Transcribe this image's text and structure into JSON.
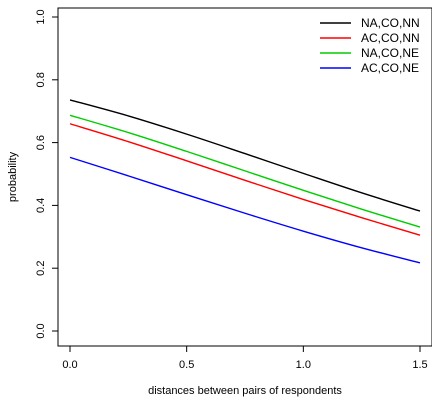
{
  "chart_data": {
    "type": "line",
    "title": "",
    "xlabel": "distances between pairs of respondents",
    "ylabel": "probability",
    "xlim": [
      0,
      1.5
    ],
    "ylim": [
      0,
      1
    ],
    "xticks": [
      0,
      0.5,
      1,
      1.5
    ],
    "xtick_labels": [
      "0.0",
      "0.5",
      "1.0",
      "1.5"
    ],
    "yticks": [
      0,
      0.2,
      0.4,
      0.6,
      0.8,
      1
    ],
    "ytick_labels": [
      "0.0",
      "0.2",
      "0.4",
      "0.6",
      "0.8",
      "1.0"
    ],
    "grid": false,
    "legend_position": "top-right",
    "x": [
      0,
      0.25,
      0.5,
      0.75,
      1.0,
      1.25,
      1.5
    ],
    "series": [
      {
        "name": "NA,CO,NN",
        "color": "#000000",
        "values": [
          0.736,
          0.685,
          0.627,
          0.565,
          0.502,
          0.44,
          0.382
        ]
      },
      {
        "name": "AC,CO,NN",
        "color": "#ff0000",
        "values": [
          0.66,
          0.603,
          0.542,
          0.48,
          0.419,
          0.361,
          0.305
        ]
      },
      {
        "name": "NA,CO,NE",
        "color": "#00cd00",
        "values": [
          0.687,
          0.632,
          0.572,
          0.51,
          0.448,
          0.388,
          0.331
        ]
      },
      {
        "name": "AC,CO,NE",
        "color": "#0000ff",
        "values": [
          0.553,
          0.494,
          0.434,
          0.375,
          0.318,
          0.265,
          0.217
        ]
      }
    ]
  }
}
